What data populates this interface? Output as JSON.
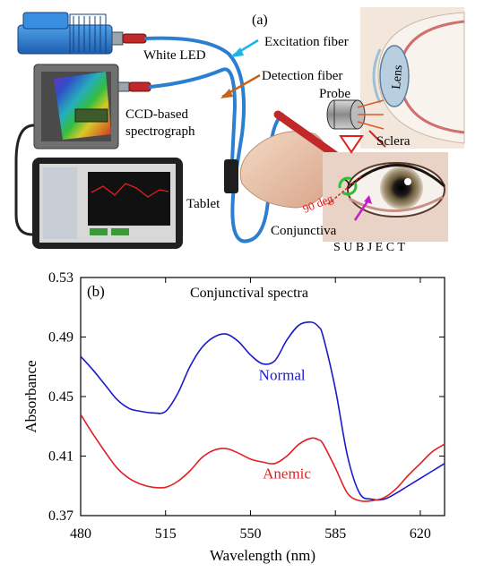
{
  "panel_a": {
    "label": "(a)",
    "labels": {
      "white_led": "White LED",
      "excitation_fiber": "Excitation fiber",
      "detection_fiber": "Detection fiber",
      "ccd_spectrograph_line1": "CCD-based",
      "ccd_spectrograph_line2": "spectrograph",
      "tablet": "Tablet",
      "probe": "Probe",
      "sclera": "Sclera",
      "lens": "Lens",
      "angle": "90 deg",
      "conjunctiva": "Conjunctiva",
      "subject": "S U B J E C T"
    },
    "colors": {
      "fiber": "#2b7fd1",
      "excitation_arrow": "#1ab6e8",
      "detection_arrow": "#c8621a",
      "probe_red": "#c0282a",
      "angle_text": "#e01818",
      "conjunctiva_arrow": "#c21fc8"
    }
  },
  "chart_data": {
    "type": "line",
    "panel_label": "(b)",
    "title": "Conjunctival spectra",
    "xlabel": "Wavelength (nm)",
    "ylabel": "Absorbance",
    "xlim": [
      480,
      630
    ],
    "ylim": [
      0.37,
      0.53
    ],
    "xticks": [
      "480",
      "515",
      "550",
      "585",
      "620"
    ],
    "xtick_values": [
      480,
      515,
      550,
      585,
      620
    ],
    "yticks": [
      "0.37",
      "0.41",
      "0.45",
      "0.49",
      "0.53"
    ],
    "ytick_values": [
      0.37,
      0.41,
      0.45,
      0.49,
      0.53
    ],
    "grid": false,
    "series": [
      {
        "name": "Normal",
        "color": "#1a1acc",
        "x": [
          480,
          485,
          490,
          495,
          500,
          505,
          510,
          515,
          520,
          525,
          530,
          535,
          540,
          545,
          550,
          555,
          560,
          565,
          570,
          575,
          578,
          580,
          585,
          590,
          595,
          600,
          605,
          610,
          615,
          620,
          625,
          630
        ],
        "y": [
          0.477,
          0.468,
          0.458,
          0.448,
          0.442,
          0.44,
          0.439,
          0.44,
          0.452,
          0.47,
          0.483,
          0.49,
          0.492,
          0.487,
          0.478,
          0.472,
          0.474,
          0.488,
          0.498,
          0.5,
          0.497,
          0.49,
          0.455,
          0.41,
          0.385,
          0.381,
          0.381,
          0.385,
          0.39,
          0.395,
          0.4,
          0.405
        ]
      },
      {
        "name": "Anemic",
        "color": "#e02020",
        "x": [
          480,
          485,
          490,
          495,
          500,
          505,
          510,
          515,
          520,
          525,
          530,
          535,
          540,
          545,
          550,
          555,
          560,
          565,
          570,
          575,
          578,
          580,
          585,
          590,
          595,
          600,
          605,
          610,
          615,
          620,
          625,
          630
        ],
        "y": [
          0.438,
          0.425,
          0.413,
          0.402,
          0.395,
          0.391,
          0.389,
          0.389,
          0.393,
          0.4,
          0.409,
          0.414,
          0.415,
          0.412,
          0.408,
          0.406,
          0.405,
          0.41,
          0.418,
          0.422,
          0.421,
          0.418,
          0.402,
          0.385,
          0.38,
          0.38,
          0.382,
          0.388,
          0.397,
          0.405,
          0.413,
          0.418
        ]
      }
    ],
    "annotations": [
      {
        "text": "Normal",
        "x": 563,
        "y": 0.461,
        "color": "#1a1acc"
      },
      {
        "text": "Anemic",
        "x": 565,
        "y": 0.395,
        "color": "#e02020"
      }
    ]
  }
}
